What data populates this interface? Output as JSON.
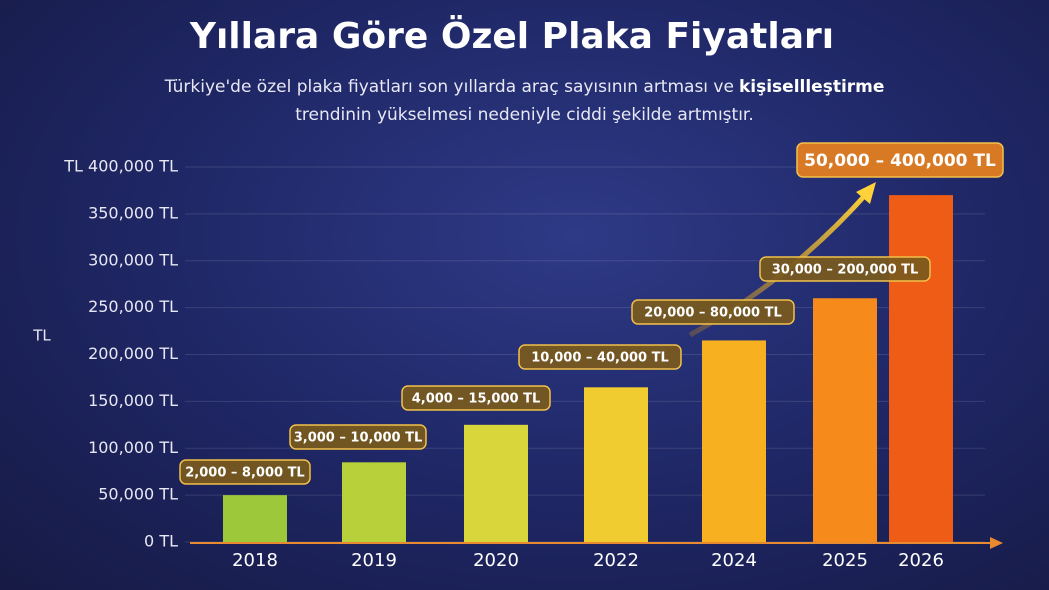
{
  "chart_data": {
    "type": "bar",
    "title": "Yıllara Göre Özel Plaka Fiyatları",
    "subtitle_parts": [
      "Türkiye'de özel plaka fiyatları son yıllarda araç sayısının artması ve",
      "kişisellleştirme",
      "trendinin yükselmesi nedeniyle ciddi şekilde artmıştır."
    ],
    "y_label": "TL",
    "categories": [
      "2018",
      "2019",
      "2020",
      "2022",
      "2024",
      "2025",
      "2026"
    ],
    "values": [
      50000,
      85000,
      125000,
      165000,
      215000,
      260000,
      370000
    ],
    "colors": [
      "#9cc83a",
      "#b8d03a",
      "#d8d63a",
      "#f0cc30",
      "#f6b020",
      "#f68a1a",
      "#ee5c16"
    ],
    "annotations": [
      "2,000 – 8,000 TL",
      "3,000 – 10,000 TL",
      "4,000 – 15,000 TL",
      "10,000 – 40,000 TL",
      "20,000 – 80,000 TL",
      "30,000 – 200,000 TL",
      "50,000 – 400,000 TL"
    ],
    "ylim": [
      0,
      400000
    ],
    "yticks": [
      {
        "value": 0,
        "label": "0 TL"
      },
      {
        "value": 50000,
        "label": "50,000 TL"
      },
      {
        "value": 100000,
        "label": "100,000 TL"
      },
      {
        "value": 150000,
        "label": "150,000 TL"
      },
      {
        "value": 200000,
        "label": "200,000 TL"
      },
      {
        "value": 250000,
        "label": "250,000 TL"
      },
      {
        "value": 300000,
        "label": "300,000 TL"
      },
      {
        "value": 350000,
        "label": "350,000 TL"
      },
      {
        "value": 400000,
        "label": "TL 400,000 TL"
      }
    ],
    "grid": true
  }
}
